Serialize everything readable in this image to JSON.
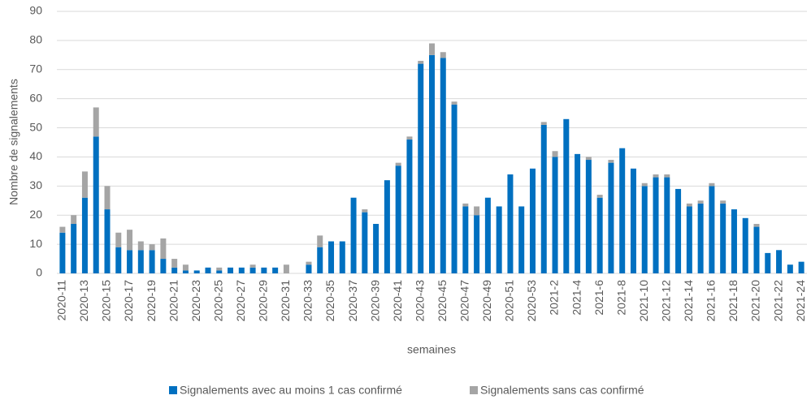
{
  "chart_data": {
    "type": "bar",
    "stacked": true,
    "x_label": "semaines",
    "y_label": "Nombre de signalements",
    "categories": [
      "2020-11",
      null,
      "2020-13",
      null,
      "2020-15",
      null,
      "2020-17",
      null,
      "2020-19",
      null,
      "2020-21",
      null,
      "2020-23",
      null,
      "2020-25",
      null,
      "2020-27",
      null,
      "2020-29",
      null,
      "2020-31",
      null,
      "2020-33",
      null,
      "2020-35",
      null,
      "2020-37",
      null,
      "2020-39",
      null,
      "2020-41",
      null,
      "2020-43",
      null,
      "2020-45",
      null,
      "2020-47",
      null,
      "2020-49",
      null,
      "2020-51",
      null,
      "2020-53",
      null,
      "2021-2",
      null,
      "2021-4",
      null,
      "2021-6",
      null,
      "2021-8",
      null,
      "2021-10",
      null,
      "2021-12",
      null,
      "2021-14",
      null,
      "2021-16",
      null,
      "2021-18",
      null,
      "2021-20",
      null,
      "2021-22",
      null,
      "2021-24"
    ],
    "series": [
      {
        "name": "Signalements avec au moins 1 cas confirmé",
        "color": "#0070c0",
        "values": [
          14,
          17,
          26,
          47,
          22,
          9,
          8,
          8,
          8,
          5,
          2,
          1,
          1,
          2,
          1,
          2,
          2,
          2,
          2,
          2,
          0,
          0,
          3,
          9,
          11,
          11,
          26,
          21,
          17,
          32,
          37,
          46,
          72,
          75,
          74,
          58,
          23,
          20,
          26,
          23,
          34,
          23,
          36,
          51,
          40,
          53,
          41,
          39,
          26,
          38,
          43,
          36,
          30,
          33,
          33,
          29,
          23,
          24,
          30,
          24,
          22,
          19,
          16,
          7,
          8,
          3,
          4
        ]
      },
      {
        "name": "Signalements sans cas confirmé",
        "color": "#a5a5a5",
        "values": [
          2,
          3,
          9,
          10,
          8,
          5,
          7,
          3,
          2,
          7,
          3,
          2,
          0,
          0,
          1,
          0,
          0,
          1,
          0,
          0,
          3,
          0,
          1,
          4,
          0,
          0,
          0,
          1,
          0,
          0,
          1,
          1,
          1,
          4,
          2,
          1,
          1,
          3,
          0,
          0,
          0,
          0,
          0,
          1,
          2,
          0,
          0,
          1,
          1,
          1,
          0,
          0,
          1,
          1,
          1,
          0,
          1,
          1,
          1,
          1,
          0,
          0,
          1,
          0,
          0,
          0,
          0
        ]
      }
    ],
    "ylim": [
      0,
      90
    ],
    "yticks": [
      0,
      10,
      20,
      30,
      40,
      50,
      60,
      70,
      80,
      90
    ],
    "grid": true,
    "legend": "bottom"
  }
}
